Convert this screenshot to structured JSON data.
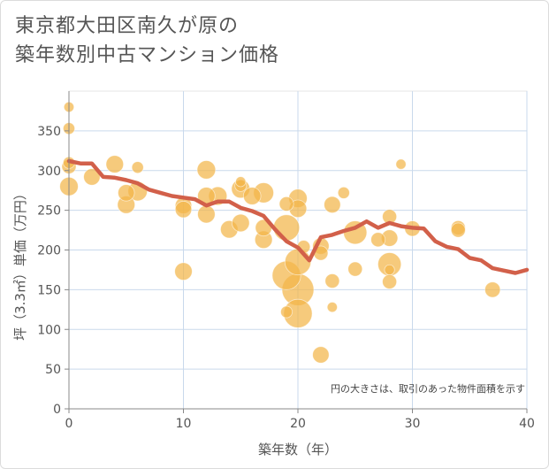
{
  "title_line1": "東京都大田区南久が原の",
  "title_line2": "築年数別中古マンション価格",
  "chart_data": {
    "type": "scatter",
    "xlabel": "築年数（年）",
    "ylabel": "坪（3.3㎡）単価（万円）",
    "xlim": [
      0,
      40
    ],
    "ylim": [
      0,
      400
    ],
    "xticks": [
      0,
      10,
      20,
      30,
      40
    ],
    "yticks": [
      0,
      50,
      100,
      150,
      200,
      250,
      300,
      350
    ],
    "grid": true,
    "note": "円の大きさは、取引のあった物件面積を示す",
    "colors": {
      "bubble": "#f3b54a",
      "line": "#d2604a"
    },
    "bubbles": [
      {
        "x": 0,
        "y": 380,
        "size": 1.5
      },
      {
        "x": 0,
        "y": 353,
        "size": 2
      },
      {
        "x": 0,
        "y": 310,
        "size": 2
      },
      {
        "x": 0,
        "y": 305,
        "size": 3
      },
      {
        "x": 0,
        "y": 280,
        "size": 5
      },
      {
        "x": 2,
        "y": 292,
        "size": 4
      },
      {
        "x": 4,
        "y": 308,
        "size": 4.5
      },
      {
        "x": 5,
        "y": 272,
        "size": 4
      },
      {
        "x": 5,
        "y": 257,
        "size": 4.5
      },
      {
        "x": 6,
        "y": 304,
        "size": 2
      },
      {
        "x": 6,
        "y": 274,
        "size": 5.5
      },
      {
        "x": 10,
        "y": 256,
        "size": 4
      },
      {
        "x": 10,
        "y": 251,
        "size": 4
      },
      {
        "x": 10,
        "y": 173,
        "size": 4.5
      },
      {
        "x": 12,
        "y": 301,
        "size": 5
      },
      {
        "x": 12,
        "y": 268,
        "size": 4.5
      },
      {
        "x": 12,
        "y": 245,
        "size": 4.5
      },
      {
        "x": 13,
        "y": 268,
        "size": 5
      },
      {
        "x": 14,
        "y": 226,
        "size": 4.5
      },
      {
        "x": 15,
        "y": 286,
        "size": 1.5
      },
      {
        "x": 15,
        "y": 281,
        "size": 2
      },
      {
        "x": 15,
        "y": 277,
        "size": 5
      },
      {
        "x": 15,
        "y": 234,
        "size": 4.5
      },
      {
        "x": 16,
        "y": 268,
        "size": 4.5
      },
      {
        "x": 17,
        "y": 272,
        "size": 6
      },
      {
        "x": 17,
        "y": 228,
        "size": 4
      },
      {
        "x": 17,
        "y": 213,
        "size": 4.5
      },
      {
        "x": 19,
        "y": 258,
        "size": 3
      },
      {
        "x": 19,
        "y": 228,
        "size": 10
      },
      {
        "x": 19,
        "y": 168,
        "size": 12
      },
      {
        "x": 19,
        "y": 122,
        "size": 2
      },
      {
        "x": 20,
        "y": 265,
        "size": 5
      },
      {
        "x": 20,
        "y": 252,
        "size": 4.5
      },
      {
        "x": 20,
        "y": 185,
        "size": 10
      },
      {
        "x": 20,
        "y": 150,
        "size": 15
      },
      {
        "x": 20,
        "y": 120,
        "size": 12
      },
      {
        "x": 20.5,
        "y": 204,
        "size": 2.5
      },
      {
        "x": 22,
        "y": 205,
        "size": 4
      },
      {
        "x": 22,
        "y": 196,
        "size": 3
      },
      {
        "x": 22,
        "y": 68,
        "size": 4
      },
      {
        "x": 23,
        "y": 257,
        "size": 4
      },
      {
        "x": 23,
        "y": 161,
        "size": 3
      },
      {
        "x": 23,
        "y": 128,
        "size": 1.5
      },
      {
        "x": 24,
        "y": 272,
        "size": 2
      },
      {
        "x": 25,
        "y": 222,
        "size": 8
      },
      {
        "x": 25,
        "y": 176,
        "size": 3
      },
      {
        "x": 27,
        "y": 213,
        "size": 3
      },
      {
        "x": 28,
        "y": 242,
        "size": 3
      },
      {
        "x": 28,
        "y": 215,
        "size": 4
      },
      {
        "x": 28,
        "y": 182,
        "size": 8
      },
      {
        "x": 28,
        "y": 175,
        "size": 1.5
      },
      {
        "x": 28,
        "y": 160,
        "size": 3
      },
      {
        "x": 29,
        "y": 308,
        "size": 1.5
      },
      {
        "x": 30,
        "y": 227,
        "size": 3.5
      },
      {
        "x": 34,
        "y": 228,
        "size": 3
      },
      {
        "x": 34,
        "y": 225,
        "size": 3
      },
      {
        "x": 37,
        "y": 150,
        "size": 3.5
      }
    ],
    "trend": {
      "x": [
        0,
        1,
        2,
        3,
        4,
        5,
        6,
        7,
        8,
        9,
        10,
        11,
        12,
        13,
        14,
        15,
        16,
        17,
        18,
        19,
        20,
        21,
        22,
        23,
        24,
        25,
        26,
        27,
        28,
        29,
        30,
        31,
        32,
        33,
        34,
        35,
        36,
        37,
        38,
        39,
        40
      ],
      "y": [
        312,
        309,
        309,
        292,
        291,
        288,
        284,
        276,
        272,
        268,
        266,
        264,
        256,
        261,
        261,
        253,
        249,
        243,
        226,
        211,
        203,
        187,
        216,
        219,
        224,
        228,
        236,
        228,
        234,
        230,
        228,
        227,
        211,
        204,
        201,
        190,
        187,
        177,
        174,
        171,
        175
      ]
    }
  }
}
